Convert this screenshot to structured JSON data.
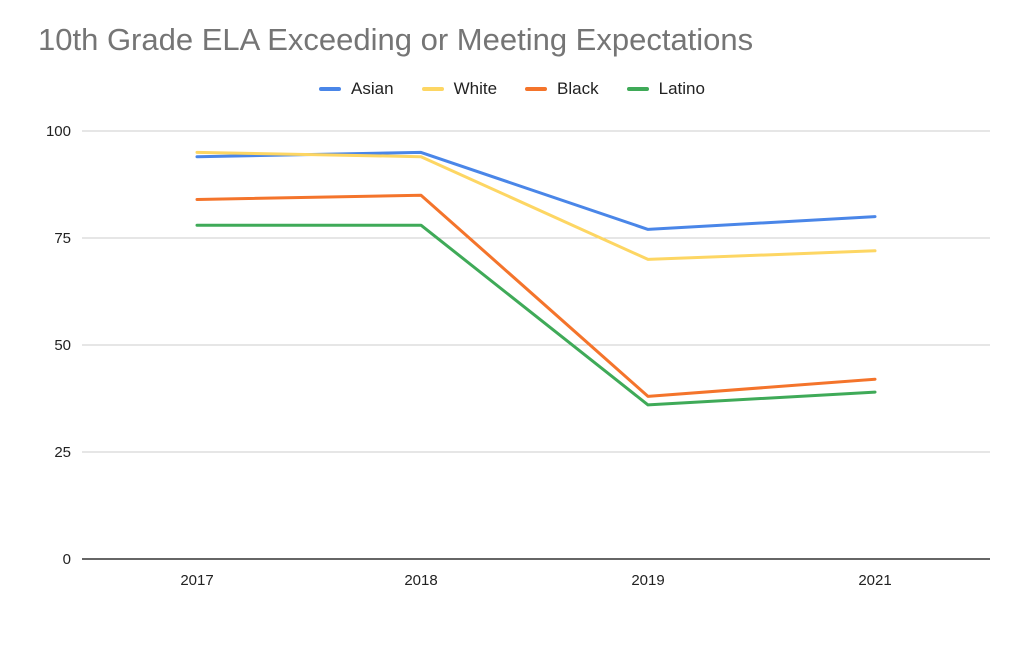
{
  "chart_data": {
    "type": "line",
    "title": "10th Grade ELA Exceeding or Meeting Expectations",
    "categories": [
      "2017",
      "2018",
      "2019",
      "2021"
    ],
    "series": [
      {
        "name": "Asian",
        "color": "#4a86e8",
        "values": [
          94,
          95,
          77,
          80
        ]
      },
      {
        "name": "White",
        "color": "#fdd663",
        "values": [
          95,
          94,
          70,
          72
        ]
      },
      {
        "name": "Black",
        "color": "#f4742b",
        "values": [
          84,
          85,
          38,
          42
        ]
      },
      {
        "name": "Latino",
        "color": "#3faa58",
        "values": [
          78,
          78,
          36,
          39
        ]
      }
    ],
    "yticks": [
      "0",
      "25",
      "50",
      "75",
      "100"
    ],
    "ylim": [
      0,
      100
    ],
    "xlabel": "",
    "ylabel": "",
    "grid": true,
    "legend_position": "top"
  }
}
